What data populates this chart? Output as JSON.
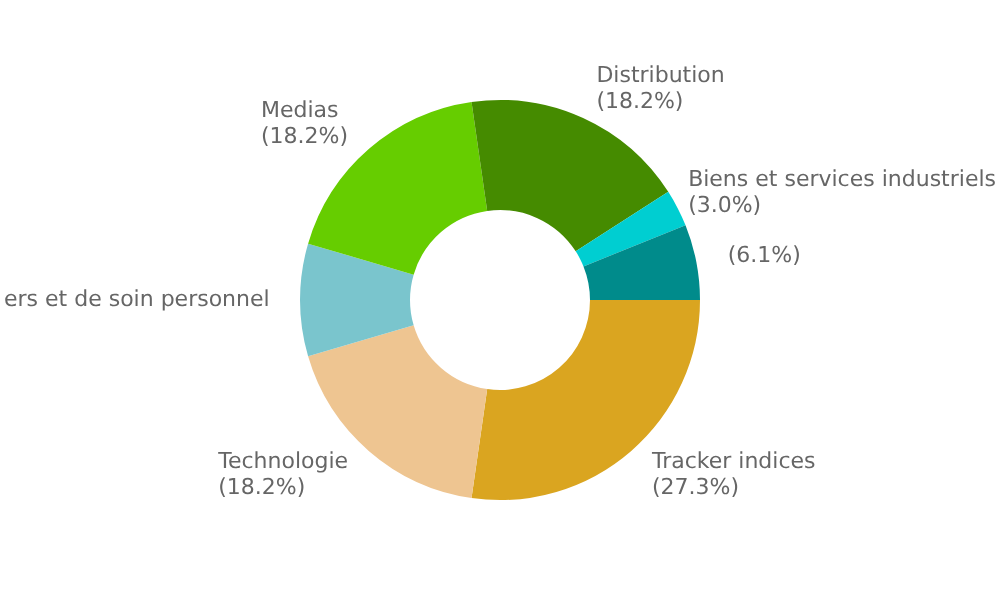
{
  "chart_data": {
    "type": "donut",
    "categories": [
      "Tracker indices",
      "Technologie",
      "ers et de soin personnel",
      "Medias",
      "Distribution",
      "Biens et services industriels",
      null
    ],
    "values": [
      27.3,
      18.2,
      9.1,
      18.2,
      18.2,
      3.0,
      6.1
    ],
    "colors": [
      "#daa520",
      "#eec591",
      "#7ac5cd",
      "#66cd00",
      "#458b00",
      "#00ced1",
      "#008b8b"
    ],
    "value_labels": [
      "(27.3%)",
      "(18.2%)",
      null,
      "(18.2%)",
      "(18.2%)",
      "(3.0%)",
      "(6.1%)"
    ],
    "legend": false
  }
}
